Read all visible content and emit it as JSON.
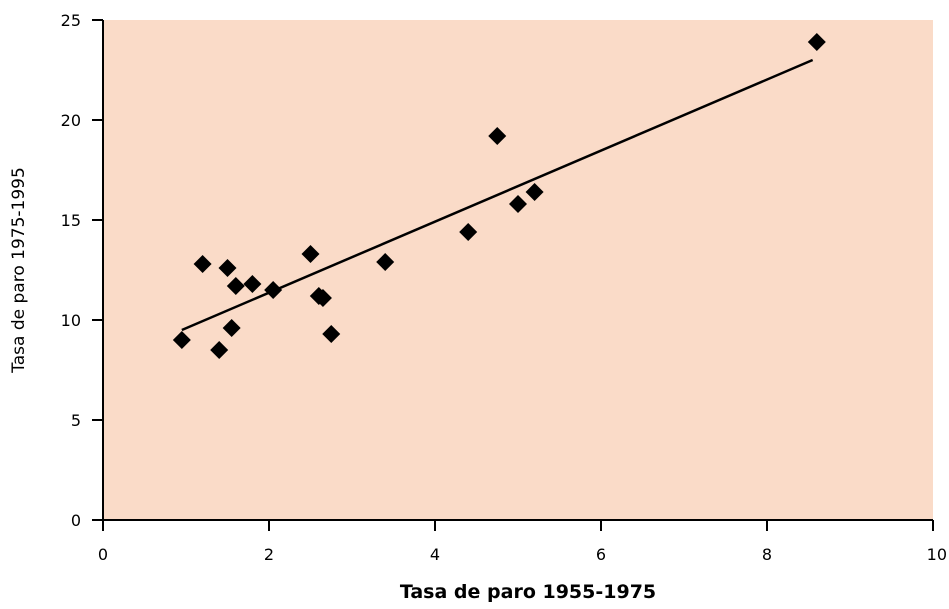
{
  "chart_data": {
    "type": "scatter",
    "title": "",
    "xlabel": "Tasa de paro 1955-1975",
    "ylabel": "Tasa de paro 1975-1995",
    "xlim": [
      0,
      10
    ],
    "ylim": [
      0,
      25
    ],
    "x_ticks": [
      0,
      2,
      4,
      6,
      8,
      10
    ],
    "y_ticks": [
      0,
      5,
      10,
      15,
      20,
      25
    ],
    "x_tick_labels": [
      "0",
      "2",
      "4",
      "6",
      "8",
      "10"
    ],
    "y_tick_labels": [
      "0",
      "5",
      "10",
      "15",
      "20",
      "25"
    ],
    "grid": false,
    "legend": "none",
    "plot_background": "#fadbc8",
    "marker_color": "#000000",
    "marker": "diamond",
    "series": [
      {
        "points": [
          {
            "x": 0.95,
            "y": 9.0
          },
          {
            "x": 1.2,
            "y": 12.8
          },
          {
            "x": 1.4,
            "y": 8.5
          },
          {
            "x": 1.5,
            "y": 12.6
          },
          {
            "x": 1.55,
            "y": 9.6
          },
          {
            "x": 1.6,
            "y": 11.7
          },
          {
            "x": 1.8,
            "y": 11.8
          },
          {
            "x": 2.05,
            "y": 11.5
          },
          {
            "x": 2.5,
            "y": 13.3
          },
          {
            "x": 2.6,
            "y": 11.2
          },
          {
            "x": 2.65,
            "y": 11.1
          },
          {
            "x": 2.75,
            "y": 9.3
          },
          {
            "x": 3.4,
            "y": 12.9
          },
          {
            "x": 4.4,
            "y": 14.4
          },
          {
            "x": 4.75,
            "y": 19.2
          },
          {
            "x": 5.0,
            "y": 15.8
          },
          {
            "x": 5.2,
            "y": 16.4
          },
          {
            "x": 8.6,
            "y": 23.9
          }
        ]
      }
    ],
    "trendline": {
      "x": [
        0.95,
        8.55
      ],
      "y": [
        9.5,
        23.0
      ]
    }
  }
}
